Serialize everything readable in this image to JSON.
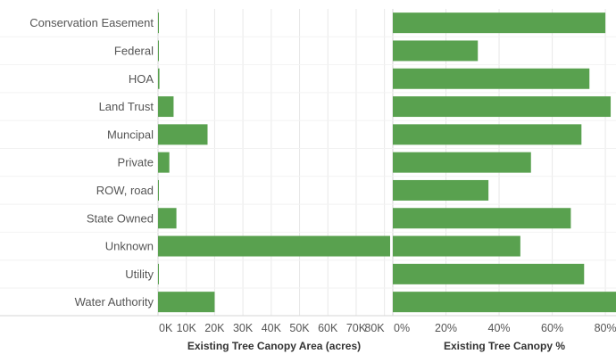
{
  "chart_data": {
    "type": "bar",
    "orientation": "horizontal",
    "categories": [
      "Conservation Easement",
      "Federal",
      "HOA",
      "Land Trust",
      "Muncipal",
      "Private",
      "ROW, road",
      "State Owned",
      "Unknown",
      "Utility",
      "Water Authority"
    ],
    "colors": {
      "bar": "#59a14f",
      "text": "#555555",
      "grid": "#e8e8e8"
    },
    "panels": [
      {
        "id": "area",
        "xlabel": "Existing Tree Canopy Area (acres)",
        "xlim": [
          0,
          82000
        ],
        "ticks": [
          0,
          10000,
          20000,
          30000,
          40000,
          50000,
          60000,
          70000,
          80000
        ],
        "tick_labels": [
          "0K",
          "10K",
          "20K",
          "30K",
          "40K",
          "50K",
          "60K",
          "70K",
          "80K"
        ],
        "values": [
          200,
          200,
          500,
          5500,
          17500,
          4000,
          200,
          6500,
          82000,
          200,
          20000
        ]
      },
      {
        "id": "percent",
        "xlabel": "Existing Tree Canopy %",
        "xlim": [
          0,
          84
        ],
        "ticks": [
          0,
          20,
          40,
          60,
          80
        ],
        "tick_labels": [
          "0%",
          "20%",
          "40%",
          "60%",
          "80%"
        ],
        "values": [
          80,
          32,
          74,
          82,
          71,
          52,
          36,
          67,
          48,
          72,
          85
        ]
      }
    ]
  }
}
